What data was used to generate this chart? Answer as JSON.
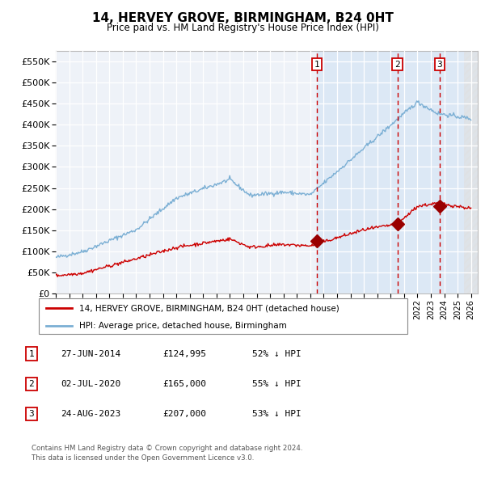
{
  "title": "14, HERVEY GROVE, BIRMINGHAM, B24 0HT",
  "subtitle": "Price paid vs. HM Land Registry's House Price Index (HPI)",
  "ylim": [
    0,
    575000
  ],
  "yticks": [
    0,
    50000,
    100000,
    150000,
    200000,
    250000,
    300000,
    350000,
    400000,
    450000,
    500000,
    550000
  ],
  "ytick_labels": [
    "£0",
    "£50K",
    "£100K",
    "£150K",
    "£200K",
    "£250K",
    "£300K",
    "£350K",
    "£400K",
    "£450K",
    "£500K",
    "£550K"
  ],
  "hpi_color": "#7bafd4",
  "price_color": "#cc0000",
  "bg_chart": "#eef2f8",
  "bg_fill_after": "#dce8f5",
  "grid_color": "#ffffff",
  "sale1": {
    "date": 2014.49,
    "price": 124995,
    "label": "1"
  },
  "sale2": {
    "date": 2020.5,
    "price": 165000,
    "label": "2"
  },
  "sale3": {
    "date": 2023.65,
    "price": 207000,
    "label": "3"
  },
  "sale_entries": [
    {
      "num": "1",
      "date": "27-JUN-2014",
      "price": "£124,995",
      "pct": "52% ↓ HPI"
    },
    {
      "num": "2",
      "date": "02-JUL-2020",
      "price": "£165,000",
      "pct": "55% ↓ HPI"
    },
    {
      "num": "3",
      "date": "24-AUG-2023",
      "price": "£207,000",
      "pct": "53% ↓ HPI"
    }
  ],
  "legend1": "14, HERVEY GROVE, BIRMINGHAM, B24 0HT (detached house)",
  "legend2": "HPI: Average price, detached house, Birmingham",
  "footer1": "Contains HM Land Registry data © Crown copyright and database right 2024.",
  "footer2": "This data is licensed under the Open Government Licence v3.0.",
  "xmin": 1995,
  "xmax": 2026.5
}
